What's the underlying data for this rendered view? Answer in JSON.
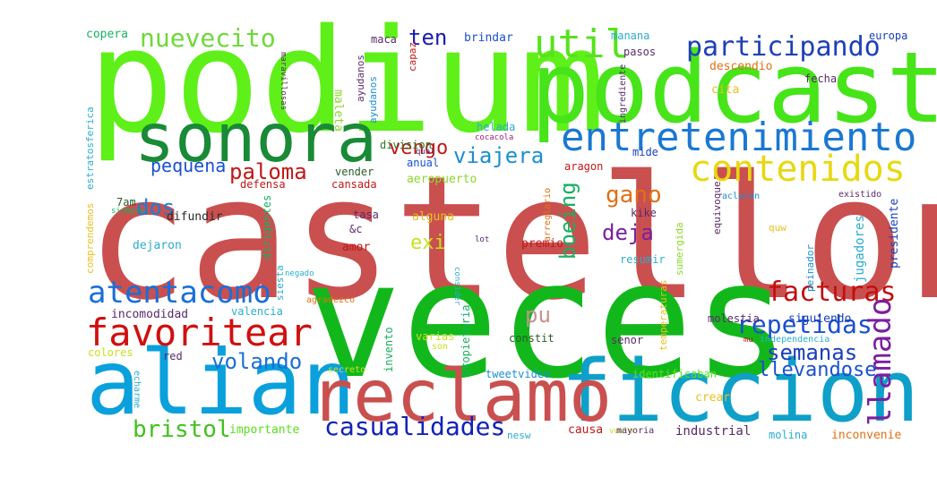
{
  "words": [
    {
      "text": "castellon",
      "size": 190,
      "color": "#c9504f"
    },
    {
      "text": "veces",
      "size": 180,
      "color": "#12b81b"
    },
    {
      "text": "podium",
      "size": 160,
      "color": "#5ef018"
    },
    {
      "text": "podcast",
      "size": 110,
      "color": "#46e419"
    },
    {
      "text": "alian",
      "size": 100,
      "color": "#0aa0dc"
    },
    {
      "text": "ficcion",
      "size": 95,
      "color": "#0ea0c8"
    },
    {
      "text": "reclamo",
      "size": 80,
      "color": "#c9504f"
    },
    {
      "text": "sonora",
      "size": 75,
      "color": "#198a36"
    },
    {
      "text": "entretenimiento",
      "size": 44,
      "color": "#1a78d2"
    },
    {
      "text": "contenidos",
      "size": 40,
      "color": "#e8d812"
    },
    {
      "text": "util",
      "size": 44,
      "color": "#56e21c"
    },
    {
      "text": "participando",
      "size": 30,
      "color": "#1e3fb8"
    },
    {
      "text": "nuevecito",
      "size": 28,
      "color": "#6ed83a"
    },
    {
      "text": "ten",
      "size": 24,
      "color": "#1a1ab0"
    },
    {
      "text": "favoritear",
      "size": 42,
      "color": "#d01010"
    },
    {
      "text": "atentacomo",
      "size": 34,
      "color": "#1a6fd8"
    },
    {
      "text": "facturas",
      "size": 30,
      "color": "#c01010"
    },
    {
      "text": "repetidas",
      "size": 28,
      "color": "#1a50d0"
    },
    {
      "text": "semanas",
      "size": 24,
      "color": "#1a3fb8"
    },
    {
      "text": "llamado",
      "size": 34,
      "color": "#7a1fa0"
    },
    {
      "text": "casualidades",
      "size": 28,
      "color": "#1222b8"
    },
    {
      "text": "bristol",
      "size": 26,
      "color": "#40c21c"
    },
    {
      "text": "volando",
      "size": 24,
      "color": "#1a6fd8"
    },
    {
      "text": "viajera",
      "size": 24,
      "color": "#1a8fd0"
    },
    {
      "text": "paloma",
      "size": 24,
      "color": "#c01818"
    },
    {
      "text": "pequena",
      "size": 20,
      "color": "#1a50d0"
    },
    {
      "text": "vengo",
      "size": 22,
      "color": "#c01818"
    },
    {
      "text": "boeing",
      "size": 24,
      "color": "#18b060"
    },
    {
      "text": "gano",
      "size": 26,
      "color": "#e07016"
    },
    {
      "text": "deja",
      "size": 24,
      "color": "#7a1fa0"
    },
    {
      "text": "dos",
      "size": 24,
      "color": "#1a7fd8"
    },
    {
      "text": "exi",
      "size": 22,
      "color": "#c8e020"
    },
    {
      "text": "pu",
      "size": 24,
      "color": "#c89090"
    },
    {
      "text": "llevandose",
      "size": 22,
      "color": "#1a50d0"
    },
    {
      "text": "incomodidad",
      "size": 13,
      "color": "#5a2a6a"
    },
    {
      "text": "valencia",
      "size": 12,
      "color": "#2aaccf"
    },
    {
      "text": "molestia",
      "size": 12,
      "color": "#5a2a6a"
    },
    {
      "text": "siguiendo",
      "size": 13,
      "color": "#1a3fb8"
    },
    {
      "text": "jugadores",
      "size": 14,
      "color": "#2aaccf"
    },
    {
      "text": "presidente",
      "size": 13,
      "color": "#1a3fb8"
    },
    {
      "text": "industrial",
      "size": 14,
      "color": "#5a2a6a"
    },
    {
      "text": "molina",
      "size": 12,
      "color": "#2aaccf"
    },
    {
      "text": "inconvenie",
      "size": 13,
      "color": "#e07016"
    },
    {
      "text": "causa",
      "size": 13,
      "color": "#c01818"
    },
    {
      "text": "nesw",
      "size": 11,
      "color": "#2aaccf"
    },
    {
      "text": "importante",
      "size": 13,
      "color": "#56e21c"
    },
    {
      "text": "tweetvideo",
      "size": 12,
      "color": "#1a8fd0"
    },
    {
      "text": "identificaban",
      "size": 12,
      "color": "#56e21c"
    },
    {
      "text": "crear",
      "size": 13,
      "color": "#e8c020"
    },
    {
      "text": "senor",
      "size": 12,
      "color": "#5a2a6a"
    },
    {
      "text": "constit",
      "size": 12,
      "color": "#2a5a2a"
    },
    {
      "text": "propietaria",
      "size": 12,
      "color": "#18b060"
    },
    {
      "text": "invento",
      "size": 12,
      "color": "#18b060"
    },
    {
      "text": "varias",
      "size": 12,
      "color": "#c8e020"
    },
    {
      "text": "colores",
      "size": 12,
      "color": "#c8e020"
    },
    {
      "text": "red",
      "size": 12,
      "color": "#5a2a6a"
    },
    {
      "text": "copera",
      "size": 13,
      "color": "#18b060"
    },
    {
      "text": "brindar",
      "size": 13,
      "color": "#1a50d0"
    },
    {
      "text": "manana",
      "size": 12,
      "color": "#2aaccf"
    },
    {
      "text": "europa",
      "size": 12,
      "color": "#1a3fb8"
    },
    {
      "text": "fecha",
      "size": 12,
      "color": "#5a2a6a"
    },
    {
      "text": "pasos",
      "size": 12,
      "color": "#5a2a6a"
    },
    {
      "text": "descendio",
      "size": 13,
      "color": "#e07016"
    },
    {
      "text": "cita",
      "size": 13,
      "color": "#e8c020"
    },
    {
      "text": "maca",
      "size": 12,
      "color": "#5a2a6a"
    },
    {
      "text": "maleta",
      "size": 13,
      "color": "#8ad82a"
    },
    {
      "text": "division",
      "size": 12,
      "color": "#2a7a2a"
    },
    {
      "text": "helada",
      "size": 12,
      "color": "#2aaccf"
    },
    {
      "text": "anual",
      "size": 12,
      "color": "#1a50d0"
    },
    {
      "text": "aeropuerto",
      "size": 13,
      "color": "#8ad82a"
    },
    {
      "text": "aragon",
      "size": 12,
      "color": "#c01818"
    },
    {
      "text": "mide",
      "size": 12,
      "color": "#1a3fb8"
    },
    {
      "text": "vender",
      "size": 12,
      "color": "#2a5a2a"
    },
    {
      "text": "defensa",
      "size": 12,
      "color": "#c01818"
    },
    {
      "text": "cansada",
      "size": 12,
      "color": "#c01818"
    },
    {
      "text": "difundir",
      "size": 13,
      "color": "#2a2a2a"
    },
    {
      "text": "tasa",
      "size": 12,
      "color": "#5a2a6a"
    },
    {
      "text": "amor",
      "size": 13,
      "color": "#c01818"
    },
    {
      "text": "alguna",
      "size": 13,
      "color": "#e8c020"
    },
    {
      "text": "premio",
      "size": 13,
      "color": "#c01818"
    },
    {
      "text": "kike",
      "size": 12,
      "color": "#5a2a6a"
    },
    {
      "text": "resumir",
      "size": 12,
      "color": "#2aaccf"
    },
    {
      "text": "dejaron",
      "size": 13,
      "color": "#2aaccf"
    },
    {
      "text": "7am",
      "size": 12,
      "color": "#2a5a2a"
    },
    {
      "text": "comprendemos",
      "size": 11,
      "color": "#e8c020"
    },
    {
      "text": "estratosferica",
      "size": 11,
      "color": "#2aaccf"
    },
    {
      "text": "maravillosas",
      "size": 9,
      "color": "#5a2a6a"
    },
    {
      "text": "ayudanos",
      "size": 11,
      "color": "#5a2a6a"
    },
    {
      "text": "ayudanos",
      "size": 11,
      "color": "#1a8fd0"
    },
    {
      "text": "capaz",
      "size": 11,
      "color": "#c01818"
    },
    {
      "text": "ingrediente",
      "size": 10,
      "color": "#5a2a6a"
    },
    {
      "text": "cocacola",
      "size": 9,
      "color": "#a01f7a"
    },
    {
      "text": "qual",
      "size": 9,
      "color": "#5a2a6a"
    },
    {
      "text": "siempre",
      "size": 9,
      "color": "#18b060"
    },
    {
      "text": "dirigentes",
      "size": 12,
      "color": "#18b060"
    },
    {
      "text": "siesta",
      "size": 11,
      "color": "#2aaccf"
    },
    {
      "text": "negado",
      "size": 9,
      "color": "#2aaccf"
    },
    {
      "text": "&c",
      "size": 12,
      "color": "#5a2a6a"
    },
    {
      "text": "arreglario",
      "size": 10,
      "color": "#e07016"
    },
    {
      "text": "lot",
      "size": 9,
      "color": "#5a2a6a"
    },
    {
      "text": "sumergida",
      "size": 11,
      "color": "#8ad82a"
    },
    {
      "text": "equivoque",
      "size": 11,
      "color": "#5a2a6a"
    },
    {
      "text": "aclaran",
      "size": 10,
      "color": "#1a8fd0"
    },
    {
      "text": "existido",
      "size": 10,
      "color": "#5a2a6a"
    },
    {
      "text": "peinador",
      "size": 11,
      "color": "#1a8fd0"
    },
    {
      "text": "quw",
      "size": 11,
      "color": "#e8c020"
    },
    {
      "text": "agradezco",
      "size": 10,
      "color": "#e07016"
    },
    {
      "text": "consider",
      "size": 9,
      "color": "#2aaccf"
    },
    {
      "text": "temperaturas",
      "size": 11,
      "color": "#e8c020"
    },
    {
      "text": "independencia",
      "size": 10,
      "color": "#2aaccf"
    },
    {
      "text": "mu",
      "size": 9,
      "color": "#c01818"
    },
    {
      "text": "son",
      "size": 10,
      "color": "#c8e020"
    },
    {
      "text": "secreto",
      "size": 10,
      "color": "#c8e020"
    },
    {
      "text": "echarme",
      "size": 10,
      "color": "#2aaccf"
    },
    {
      "text": "vuelo",
      "size": 9,
      "color": "#c8e020"
    },
    {
      "text": "mayoria",
      "size": 10,
      "color": "#5a2a6a"
    }
  ]
}
